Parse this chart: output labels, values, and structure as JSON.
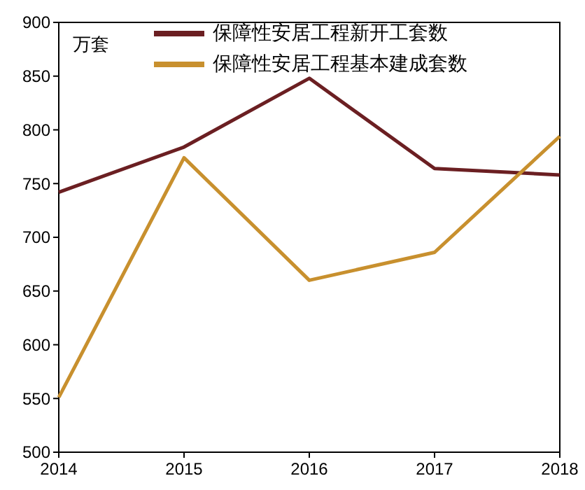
{
  "chart_data": {
    "type": "line",
    "ylabel": "万套",
    "categories": [
      "2014",
      "2015",
      "2016",
      "2017",
      "2018"
    ],
    "series": [
      {
        "name": "保障性安居工程新开工套数",
        "color": "#6b1f22",
        "values": [
          742,
          784,
          848,
          764,
          758
        ]
      },
      {
        "name": "保障性安居工程基本建成套数",
        "color": "#c8902e",
        "values": [
          551,
          774,
          660,
          686,
          794
        ]
      }
    ],
    "ylim": [
      500,
      900
    ],
    "yticks": [
      500,
      550,
      600,
      650,
      700,
      750,
      800,
      850,
      900
    ],
    "grid": false,
    "legend": "top",
    "marker": "none",
    "line_style": "solid"
  }
}
